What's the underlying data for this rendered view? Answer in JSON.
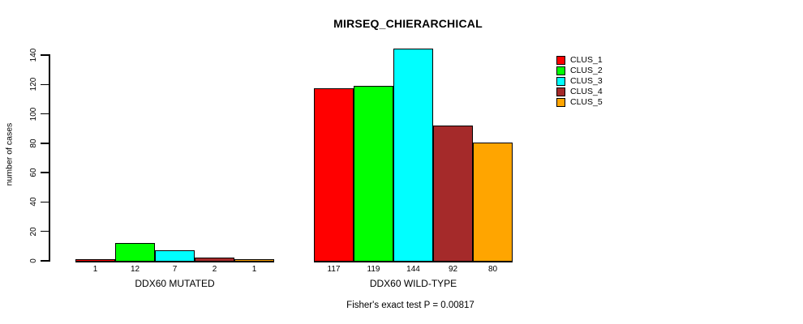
{
  "chart_data": {
    "type": "bar",
    "title": "MIRSEQ_CHIERARCHICAL",
    "ylabel": "number of cases",
    "xlabel": "",
    "ylim": [
      0,
      140
    ],
    "yticks": [
      0,
      20,
      40,
      60,
      80,
      100,
      120,
      140
    ],
    "grid": false,
    "legend_position": "top-right",
    "series_names": [
      "CLUS_1",
      "CLUS_2",
      "CLUS_3",
      "CLUS_4",
      "CLUS_5"
    ],
    "series_colors": [
      "#ff0000",
      "#00ff00",
      "#00ffff",
      "#a52a2a",
      "#ffa500"
    ],
    "groups": [
      {
        "label": "DDX60 MUTATED",
        "values": [
          1,
          12,
          7,
          2,
          1
        ]
      },
      {
        "label": "DDX60 WILD-TYPE",
        "values": [
          117,
          119,
          144,
          92,
          80
        ]
      }
    ],
    "bar_value_labels_shown": true,
    "annotation": "Fisher's exact test P = 0.00817"
  },
  "colors": {
    "axis": "#000000",
    "text": "#000000",
    "background": "#ffffff"
  }
}
